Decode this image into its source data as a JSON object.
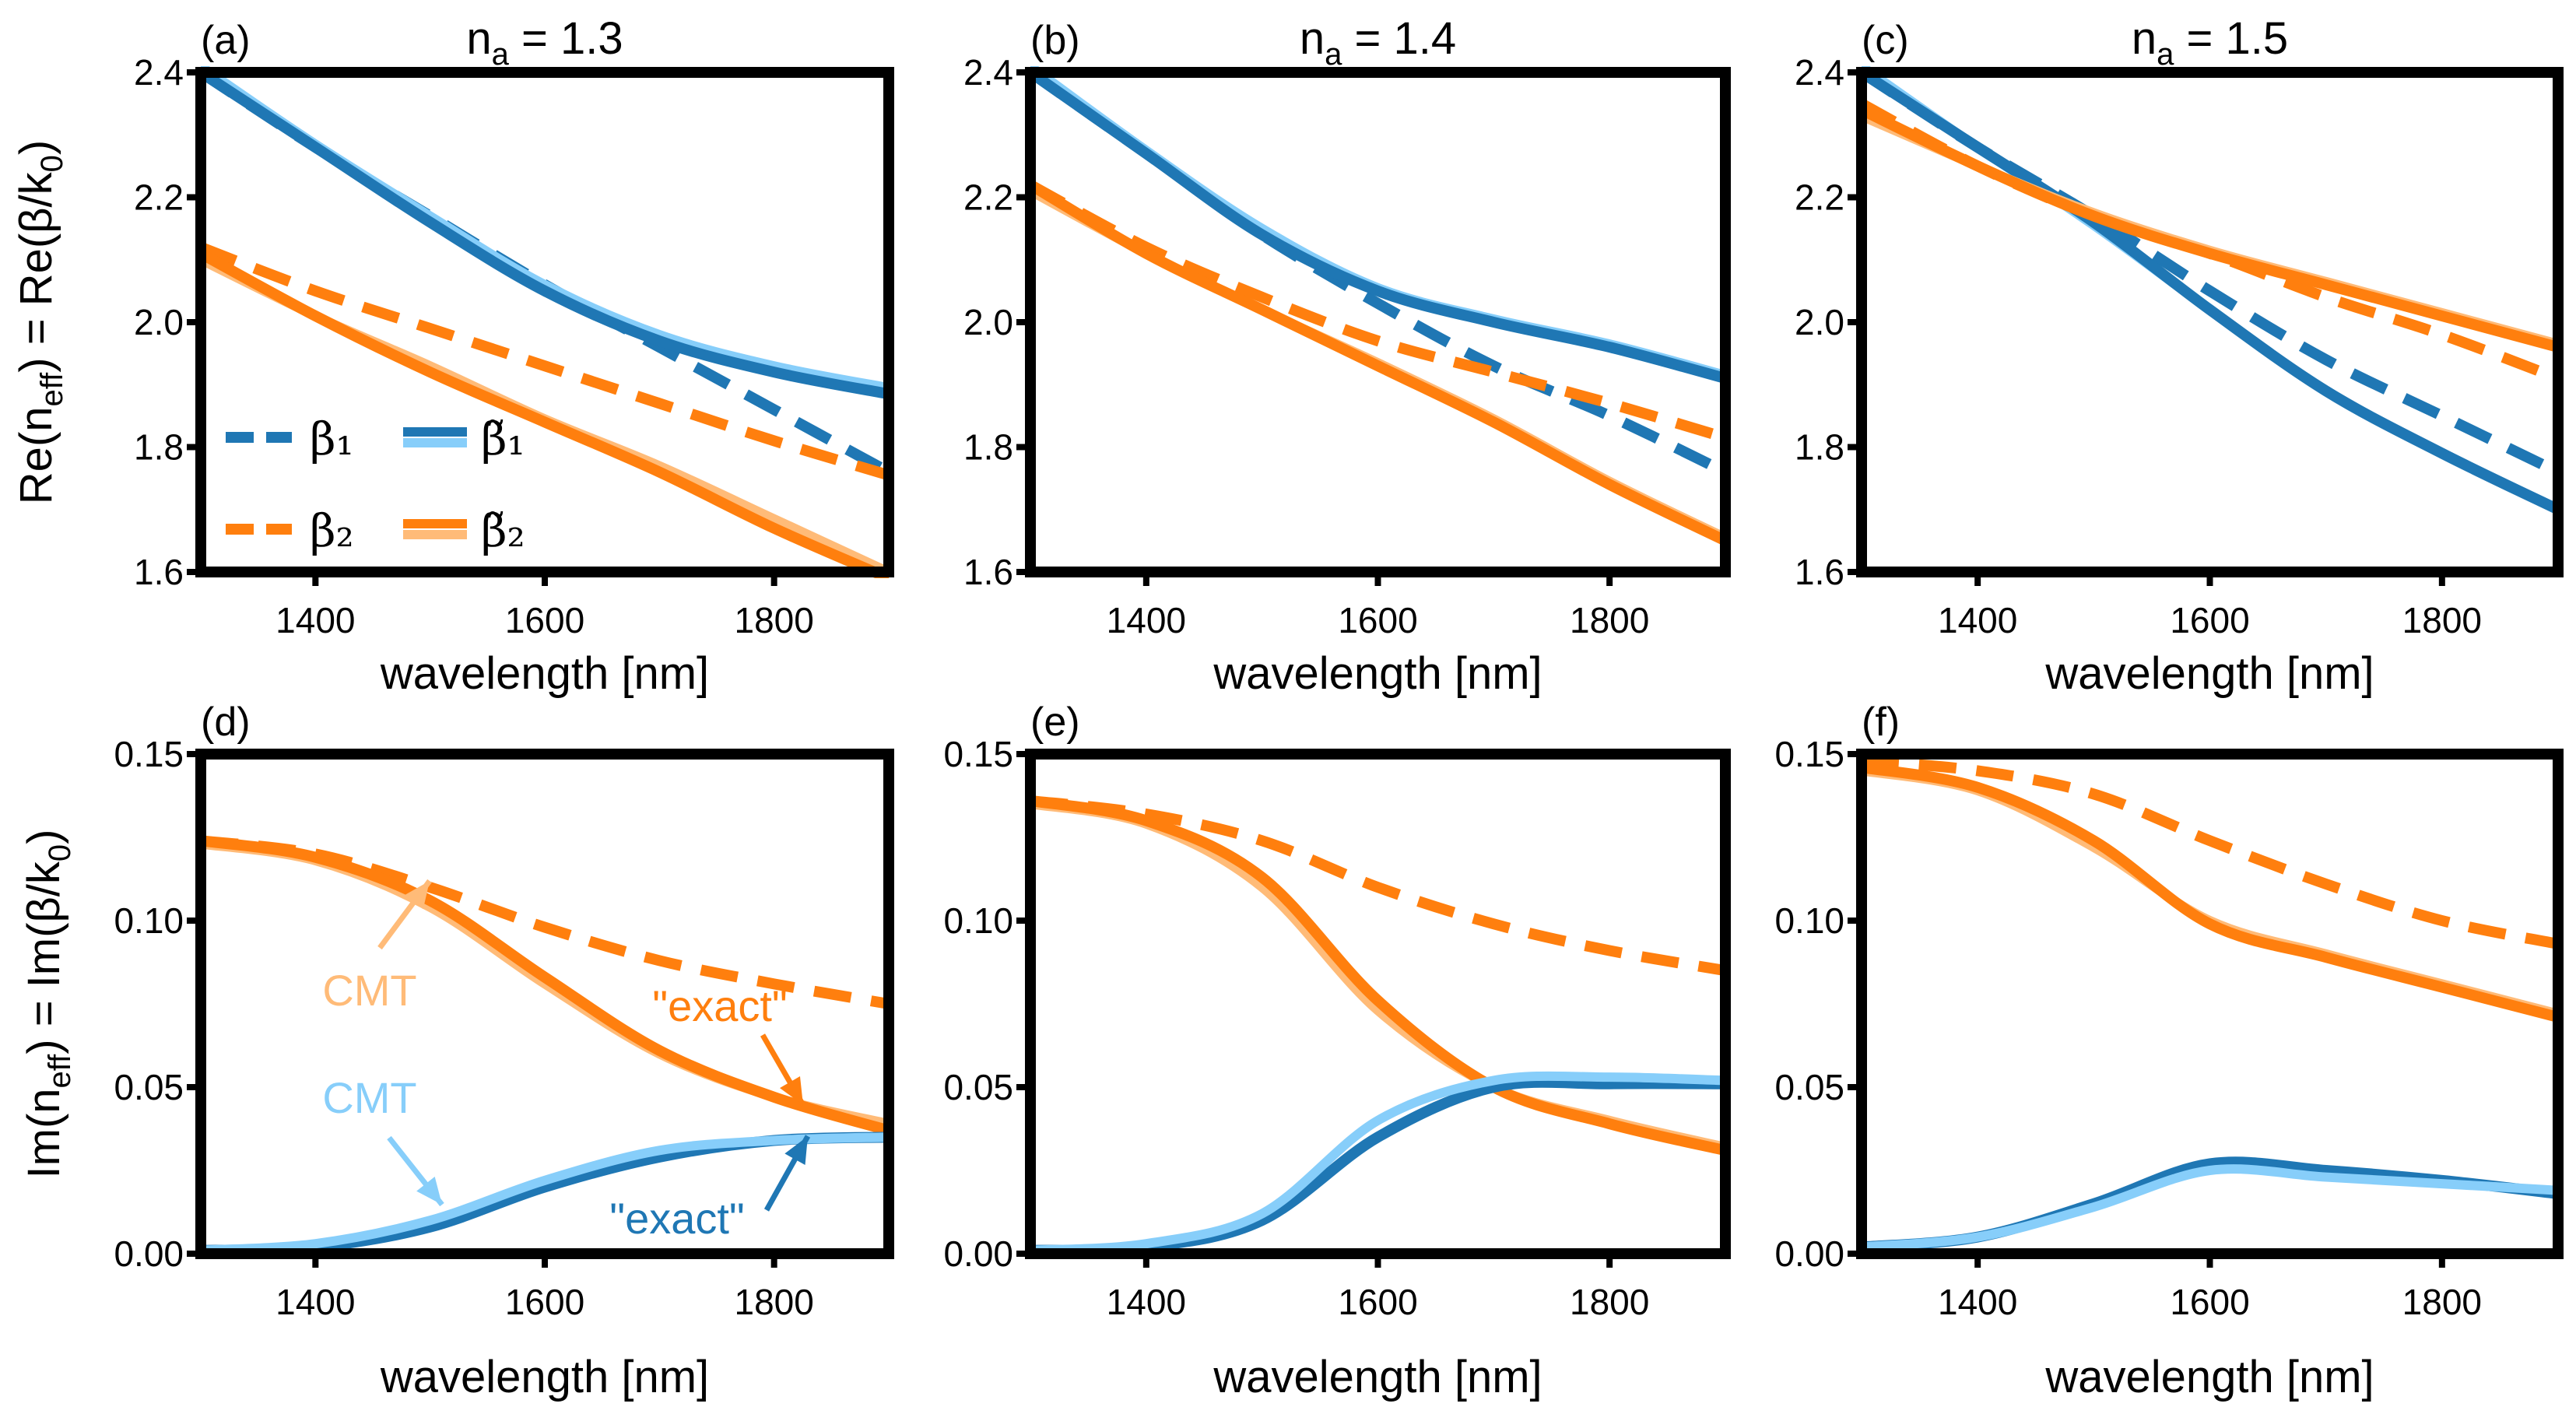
{
  "colors": {
    "beta1_exact": "#1f77b4",
    "beta1_cmt": "#87cefa",
    "beta2_exact": "#ff7f0e",
    "beta2_cmt": "#ffbb78"
  },
  "legend": [
    {
      "label": "β₁",
      "style": "dashed",
      "series": "beta1"
    },
    {
      "label": "β̃₁",
      "style": "solid",
      "series": "beta1_tilde"
    },
    {
      "label": "β₂",
      "style": "dashed",
      "series": "beta2"
    },
    {
      "label": "β̃₂",
      "style": "solid",
      "series": "beta2_tilde"
    }
  ],
  "annotations": {
    "cmt": "CMT",
    "exact": "\"exact\""
  },
  "chart_data": [
    {
      "type": "line",
      "panel": "(a)",
      "title": [
        "n",
        "a",
        " = 1.3"
      ],
      "xlabel": "wavelength [nm]",
      "ylabel": [
        [
          "Re(n",
          ""
        ],
        [
          "eff",
          "sub"
        ],
        [
          ") = Re(β/k",
          ""
        ],
        [
          "0",
          "sub"
        ],
        [
          ")",
          ""
        ]
      ],
      "xlim": [
        1300,
        1900
      ],
      "ylim": [
        1.6,
        2.4
      ],
      "xticks": [
        1400,
        1600,
        1800
      ],
      "yticks": [
        "1.6",
        "1.8",
        "2.0",
        "2.2",
        "2.4"
      ],
      "x": [
        1300,
        1400,
        1500,
        1600,
        1700,
        1800,
        1900
      ],
      "series": [
        {
          "name": "β1",
          "style": "dashed",
          "color": "beta1_exact",
          "values": [
            2.4,
            2.28,
            2.17,
            2.06,
            1.96,
            1.86,
            1.76
          ]
        },
        {
          "name": "β2",
          "style": "dashed",
          "color": "beta2_exact",
          "values": [
            2.12,
            2.05,
            1.99,
            1.93,
            1.87,
            1.81,
            1.755
          ]
        },
        {
          "name": "β̃1 CMT",
          "style": "solid",
          "color": "beta1_cmt",
          "values": [
            2.41,
            2.285,
            2.17,
            2.06,
            1.98,
            1.93,
            1.895
          ]
        },
        {
          "name": "β̃1 exact",
          "style": "solid",
          "color": "beta1_exact",
          "values": [
            2.4,
            2.28,
            2.16,
            2.05,
            1.97,
            1.92,
            1.885
          ]
        },
        {
          "name": "β̃2 CMT",
          "style": "solid",
          "color": "beta2_cmt",
          "values": [
            2.1,
            2.01,
            1.93,
            1.845,
            1.77,
            1.685,
            1.6
          ]
        },
        {
          "name": "β̃2 exact",
          "style": "solid",
          "color": "beta2_exact",
          "values": [
            2.11,
            2.01,
            1.92,
            1.84,
            1.76,
            1.67,
            1.59
          ]
        }
      ]
    },
    {
      "type": "line",
      "panel": "(b)",
      "title": [
        "n",
        "a",
        " = 1.4"
      ],
      "xlabel": "wavelength [nm]",
      "xlim": [
        1300,
        1900
      ],
      "ylim": [
        1.6,
        2.4
      ],
      "xticks": [
        1400,
        1600,
        1800
      ],
      "yticks": [
        "1.6",
        "1.8",
        "2.0",
        "2.2",
        "2.4"
      ],
      "x": [
        1300,
        1400,
        1500,
        1600,
        1700,
        1800,
        1900
      ],
      "series": [
        {
          "name": "β1",
          "style": "dashed",
          "color": "beta1_exact",
          "values": [
            2.4,
            2.27,
            2.14,
            2.03,
            1.93,
            1.85,
            1.76
          ]
        },
        {
          "name": "β2",
          "style": "dashed",
          "color": "beta2_exact",
          "values": [
            2.22,
            2.12,
            2.04,
            1.97,
            1.92,
            1.87,
            1.815
          ]
        },
        {
          "name": "β̃1 CMT",
          "style": "solid",
          "color": "beta1_cmt",
          "values": [
            2.41,
            2.275,
            2.15,
            2.055,
            2.005,
            1.965,
            1.915
          ]
        },
        {
          "name": "β̃1 exact",
          "style": "solid",
          "color": "beta1_exact",
          "values": [
            2.4,
            2.27,
            2.14,
            2.05,
            2.0,
            1.96,
            1.91
          ]
        },
        {
          "name": "β̃2 CMT",
          "style": "solid",
          "color": "beta2_cmt",
          "values": [
            2.21,
            2.11,
            2.02,
            1.935,
            1.845,
            1.745,
            1.655
          ]
        },
        {
          "name": "β̃2 exact",
          "style": "solid",
          "color": "beta2_exact",
          "values": [
            2.22,
            2.11,
            2.02,
            1.93,
            1.84,
            1.74,
            1.65
          ]
        }
      ]
    },
    {
      "type": "line",
      "panel": "(c)",
      "title": [
        "n",
        "a",
        " = 1.5"
      ],
      "xlabel": "wavelength [nm]",
      "xlim": [
        1300,
        1900
      ],
      "ylim": [
        1.6,
        2.4
      ],
      "xticks": [
        1400,
        1600,
        1800
      ],
      "yticks": [
        "1.6",
        "1.8",
        "2.0",
        "2.2",
        "2.4"
      ],
      "x": [
        1300,
        1400,
        1500,
        1600,
        1700,
        1800,
        1900
      ],
      "series": [
        {
          "name": "β1",
          "style": "dashed",
          "color": "beta1_exact",
          "values": [
            2.4,
            2.28,
            2.17,
            2.05,
            1.94,
            1.85,
            1.76
          ]
        },
        {
          "name": "β2",
          "style": "dashed",
          "color": "beta2_exact",
          "values": [
            2.35,
            2.25,
            2.17,
            2.11,
            2.04,
            1.98,
            1.91
          ]
        },
        {
          "name": "β̃1 CMT",
          "style": "solid",
          "color": "beta1_cmt",
          "values": [
            2.41,
            2.28,
            2.155,
            2.02,
            1.89,
            1.79,
            1.7
          ]
        },
        {
          "name": "β̃1 exact",
          "style": "solid",
          "color": "beta1_exact",
          "values": [
            2.4,
            2.28,
            2.16,
            2.02,
            1.89,
            1.79,
            1.7
          ]
        },
        {
          "name": "β̃2 CMT",
          "style": "solid",
          "color": "beta2_cmt",
          "values": [
            2.33,
            2.25,
            2.175,
            2.115,
            2.065,
            2.015,
            1.965
          ]
        },
        {
          "name": "β̃2 exact",
          "style": "solid",
          "color": "beta2_exact",
          "values": [
            2.34,
            2.25,
            2.17,
            2.11,
            2.06,
            2.01,
            1.96
          ]
        }
      ]
    },
    {
      "type": "line",
      "panel": "(d)",
      "xlabel": "wavelength [nm]",
      "ylabel": [
        [
          "Im(n",
          ""
        ],
        [
          "eff",
          "sub"
        ],
        [
          ") = Im(β/k",
          ""
        ],
        [
          "0",
          "sub"
        ],
        [
          ")",
          ""
        ]
      ],
      "xlim": [
        1300,
        1900
      ],
      "ylim": [
        0,
        0.15
      ],
      "xticks": [
        1400,
        1600,
        1800
      ],
      "yticks": [
        "0.00",
        "0.05",
        "0.10",
        "0.15"
      ],
      "x": [
        1300,
        1400,
        1500,
        1600,
        1700,
        1800,
        1900
      ],
      "series": [
        {
          "name": "β2",
          "style": "dashed",
          "color": "beta2_exact",
          "values": [
            0.124,
            0.12,
            0.11,
            0.098,
            0.088,
            0.081,
            0.075
          ]
        },
        {
          "name": "β̃2 CMT",
          "style": "solid",
          "color": "beta2_cmt",
          "values": [
            0.123,
            0.118,
            0.104,
            0.081,
            0.06,
            0.047,
            0.039
          ]
        },
        {
          "name": "β̃2 exact",
          "style": "solid",
          "color": "beta2_exact",
          "values": [
            0.124,
            0.119,
            0.106,
            0.083,
            0.061,
            0.047,
            0.037
          ]
        },
        {
          "name": "β̃1 exact",
          "style": "solid",
          "color": "beta1_exact",
          "values": [
            0.001,
            0.002,
            0.008,
            0.02,
            0.029,
            0.034,
            0.035
          ]
        },
        {
          "name": "β̃1 CMT",
          "style": "solid",
          "color": "beta1_cmt",
          "values": [
            0.001,
            0.003,
            0.01,
            0.022,
            0.031,
            0.034,
            0.035
          ]
        }
      ]
    },
    {
      "type": "line",
      "panel": "(e)",
      "xlabel": "wavelength [nm]",
      "xlim": [
        1300,
        1900
      ],
      "ylim": [
        0,
        0.15
      ],
      "xticks": [
        1400,
        1600,
        1800
      ],
      "yticks": [
        "0.00",
        "0.05",
        "0.10",
        "0.15"
      ],
      "x": [
        1300,
        1400,
        1500,
        1600,
        1700,
        1800,
        1900
      ],
      "series": [
        {
          "name": "β2",
          "style": "dashed",
          "color": "beta2_exact",
          "values": [
            0.136,
            0.132,
            0.124,
            0.11,
            0.099,
            0.091,
            0.085
          ]
        },
        {
          "name": "β̃2 CMT",
          "style": "solid",
          "color": "beta2_cmt",
          "values": [
            0.135,
            0.129,
            0.11,
            0.073,
            0.05,
            0.04,
            0.032
          ]
        },
        {
          "name": "β̃2 exact",
          "style": "solid",
          "color": "beta2_exact",
          "values": [
            0.136,
            0.13,
            0.113,
            0.076,
            0.05,
            0.039,
            0.031
          ]
        },
        {
          "name": "β̃1 exact",
          "style": "solid",
          "color": "beta1_exact",
          "values": [
            0.001,
            0.002,
            0.01,
            0.035,
            0.05,
            0.051,
            0.051
          ]
        },
        {
          "name": "β̃1 CMT",
          "style": "solid",
          "color": "beta1_cmt",
          "values": [
            0.001,
            0.003,
            0.012,
            0.04,
            0.052,
            0.053,
            0.052
          ]
        }
      ]
    },
    {
      "type": "line",
      "panel": "(f)",
      "xlabel": "wavelength [nm]",
      "xlim": [
        1300,
        1900
      ],
      "ylim": [
        0,
        0.15
      ],
      "xticks": [
        1400,
        1600,
        1800
      ],
      "yticks": [
        "0.00",
        "0.05",
        "0.10",
        "0.15"
      ],
      "x": [
        1300,
        1400,
        1500,
        1600,
        1700,
        1800,
        1900
      ],
      "series": [
        {
          "name": "β2",
          "style": "dashed",
          "color": "beta2_exact",
          "values": [
            0.148,
            0.145,
            0.138,
            0.124,
            0.111,
            0.1,
            0.093
          ]
        },
        {
          "name": "β̃2 CMT",
          "style": "solid",
          "color": "beta2_cmt",
          "values": [
            0.145,
            0.139,
            0.122,
            0.1,
            0.09,
            0.081,
            0.072
          ]
        },
        {
          "name": "β̃2 exact",
          "style": "solid",
          "color": "beta2_exact",
          "values": [
            0.146,
            0.14,
            0.124,
            0.099,
            0.089,
            0.08,
            0.071
          ]
        },
        {
          "name": "β̃1 exact",
          "style": "solid",
          "color": "beta1_exact",
          "values": [
            0.002,
            0.005,
            0.015,
            0.027,
            0.025,
            0.022,
            0.018
          ]
        },
        {
          "name": "β̃1 CMT",
          "style": "solid",
          "color": "beta1_cmt",
          "values": [
            0.002,
            0.005,
            0.014,
            0.025,
            0.023,
            0.021,
            0.019
          ]
        }
      ]
    }
  ]
}
